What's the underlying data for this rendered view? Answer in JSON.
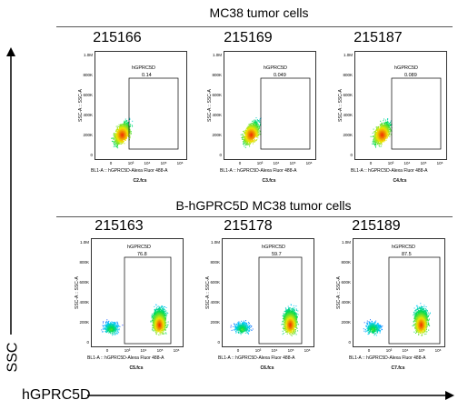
{
  "top_title": "MC38 tumor cells",
  "bottom_title": "B-hGPRC5D MC38 tumor cells",
  "y_axis_label": "SSC",
  "x_axis_label": "hGPRC5D",
  "plot_y_label": "SSC-A :: SSC-A",
  "plot_x_label": "BL1-A :: hGPRC5D-Alexa Fluor    488-A",
  "y_ticks": [
    "1.0M",
    "800K",
    "600K",
    "400K",
    "200K",
    "0"
  ],
  "x_ticks": [
    "0",
    "10³",
    "10⁴",
    "10⁵",
    "10⁶"
  ],
  "gate_name": "hGPRC5D",
  "panels": [
    {
      "id": "215166",
      "file": "C2.fcs",
      "gate_value": "0.14"
    },
    {
      "id": "215169",
      "file": "C3.fcs",
      "gate_value": "0.049"
    },
    {
      "id": "215187",
      "file": "C4.fcs",
      "gate_value": "0.089"
    },
    {
      "id": "215163",
      "file": "C5.fcs",
      "gate_value": "76.8"
    },
    {
      "id": "215178",
      "file": "C6.fcs",
      "gate_value": "59.7"
    },
    {
      "id": "215189",
      "file": "C7.fcs",
      "gate_value": "87.5"
    }
  ]
}
